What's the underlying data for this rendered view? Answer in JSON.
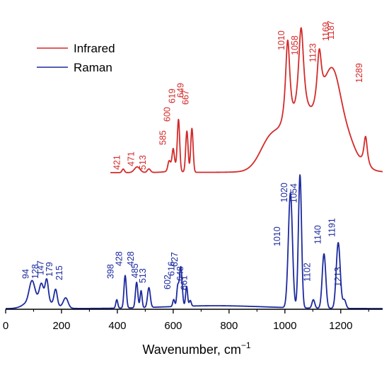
{
  "chart_data": {
    "type": "line",
    "title": "",
    "xlabel": "Wavenumber, cm",
    "xlabel_superscript": "−1",
    "ylabel": "",
    "xlim": [
      0,
      1350
    ],
    "xticks": [
      0,
      200,
      400,
      600,
      800,
      1000,
      1200
    ],
    "y_axis_visible": false,
    "grid": false,
    "legend_position": "top-left",
    "series": [
      {
        "name": "Infrared",
        "color": "#d42a2a",
        "x_range": [
          375,
          1350
        ],
        "peaks": [
          421,
          471,
          513,
          585,
          600,
          619,
          649,
          667,
          1010,
          1058,
          1123,
          1169,
          1187,
          1289
        ]
      },
      {
        "name": "Raman",
        "color": "#1c2a9e",
        "x_range": [
          0,
          1350
        ],
        "peaks": [
          94,
          128,
          147,
          179,
          215,
          398,
          428,
          428,
          485,
          513,
          602,
          616,
          627,
          648,
          661,
          1010,
          1020,
          1054,
          1102,
          1140,
          1191,
          1213
        ]
      }
    ],
    "peak_labels": {
      "infrared": [
        "421",
        "471",
        "513",
        "585",
        "600",
        "619",
        "649",
        "667",
        "1010",
        "1058",
        "1123",
        "1169",
        "1187",
        "1289"
      ],
      "raman": [
        "94",
        "128",
        "147",
        "179",
        "215",
        "398",
        "428",
        "428",
        "485",
        "513",
        "602",
        "616",
        "627",
        "648",
        "661",
        "1010",
        "1020",
        "1054",
        "1102",
        "1140",
        "1191",
        "1213"
      ]
    }
  }
}
